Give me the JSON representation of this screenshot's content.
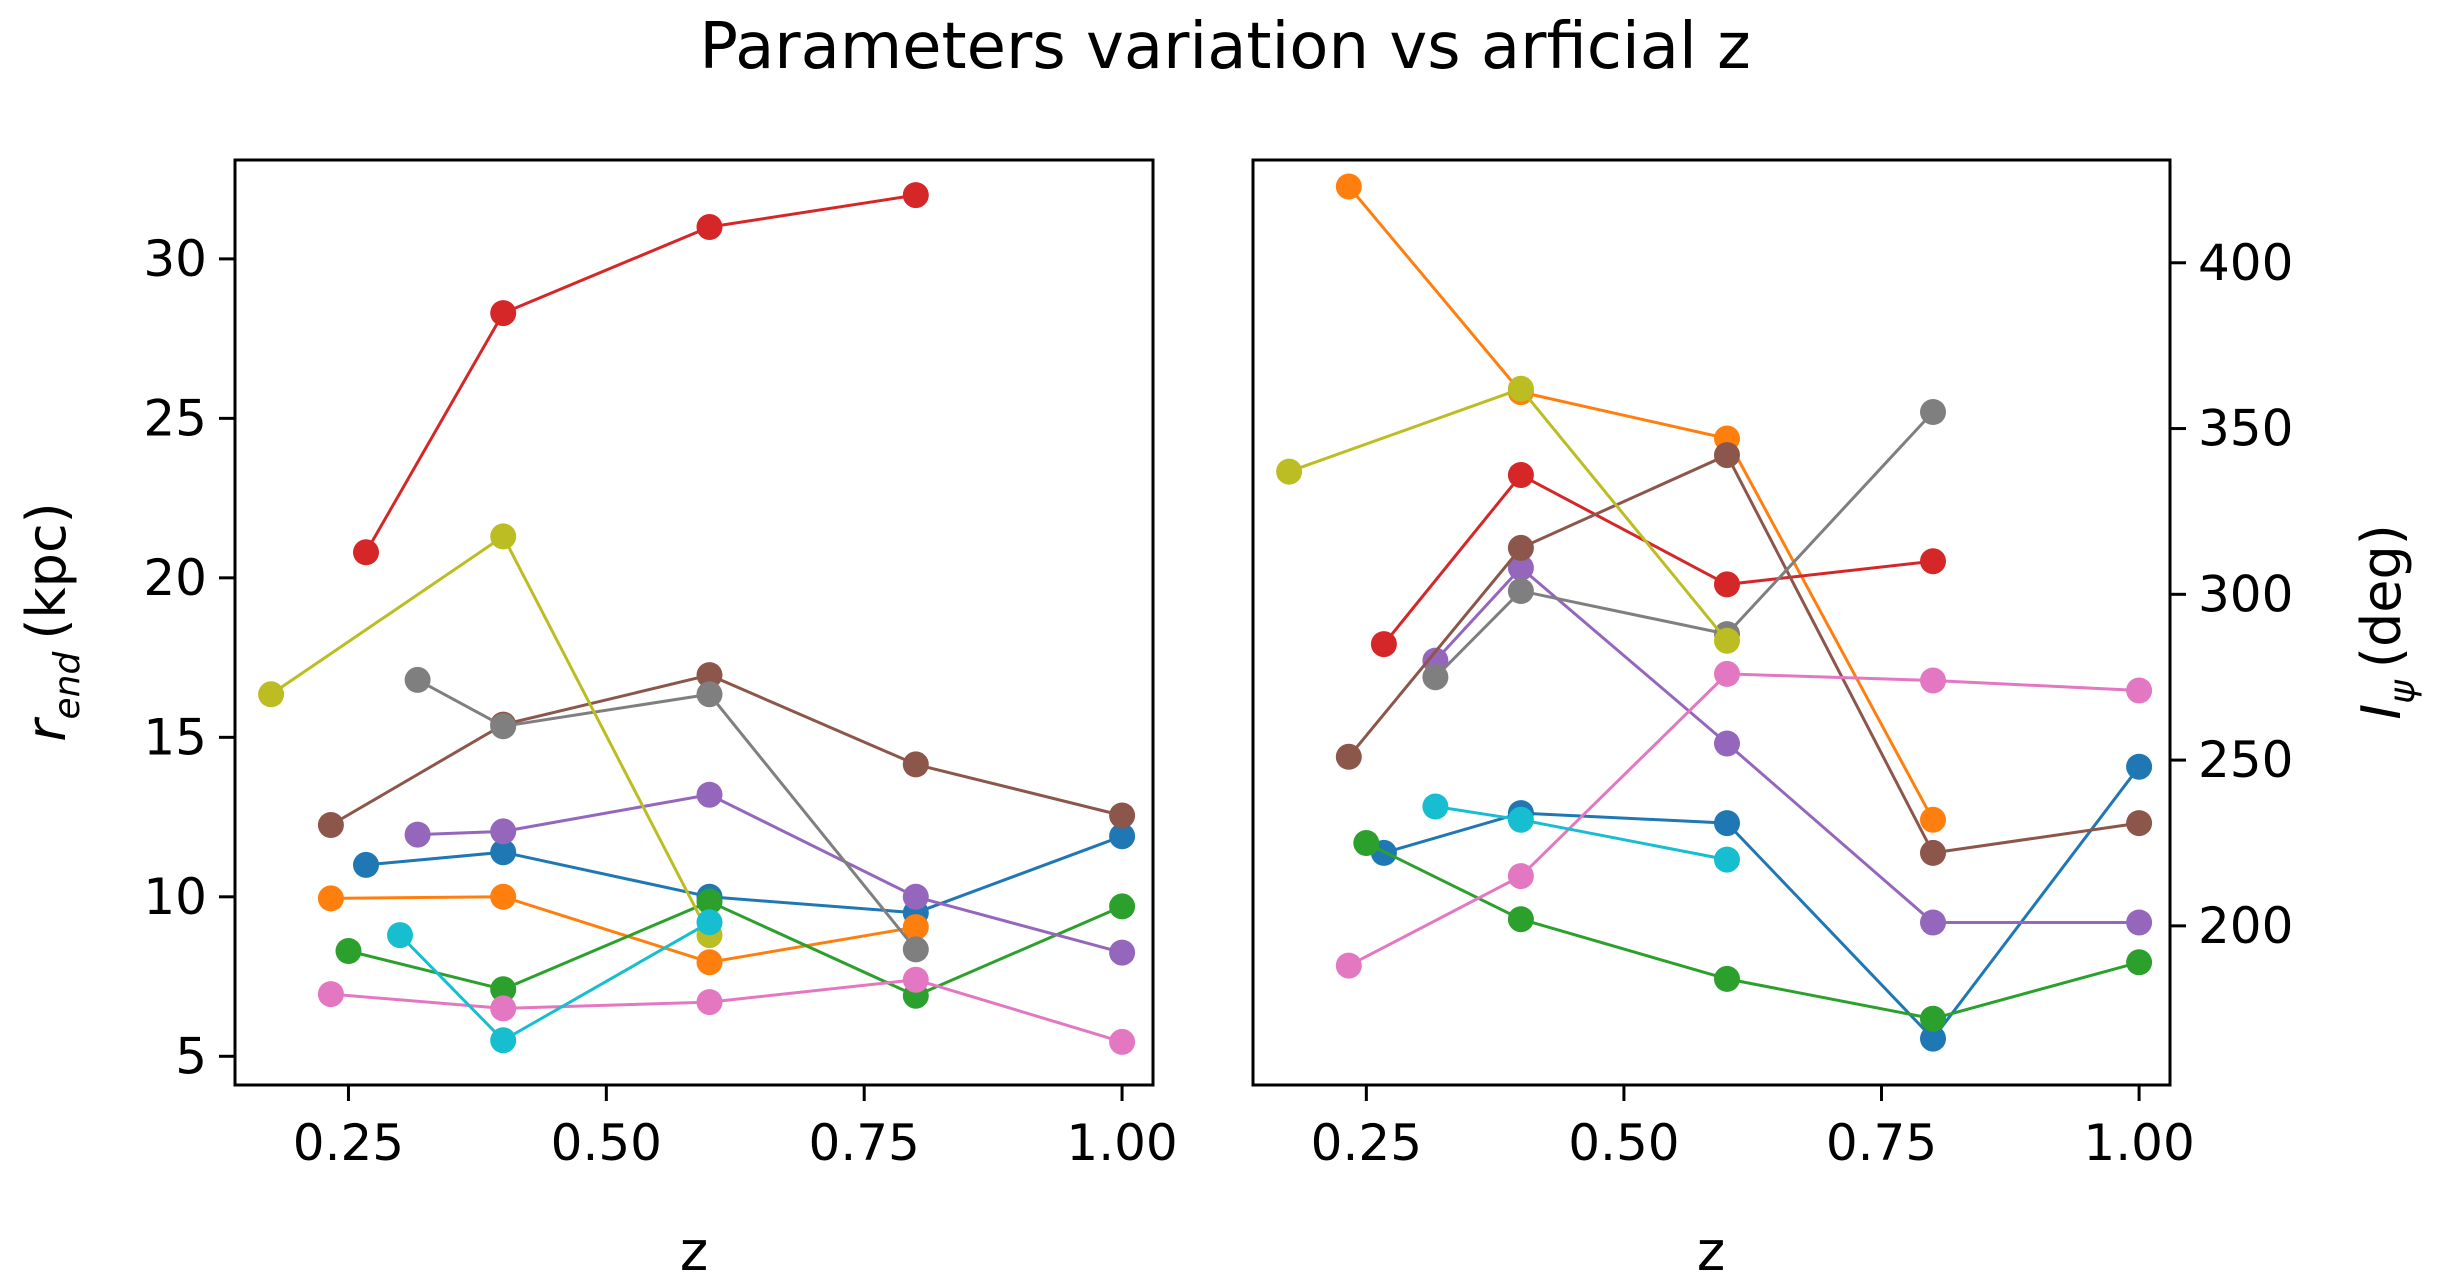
{
  "figure": {
    "title": "Parameters variation vs arficial z"
  },
  "chart_data": [
    {
      "type": "line",
      "panel": "left",
      "xlabel": "z",
      "ylabel": {
        "base": "r",
        "sub": "end",
        "unit": "(kpc)"
      },
      "xlim": [
        0.14,
        1.03
      ],
      "ylim": [
        4.1,
        33.1
      ],
      "xticks": [
        "0.25",
        "0.50",
        "0.75",
        "1.00"
      ],
      "yticks": [
        "5",
        "10",
        "15",
        "20",
        "25",
        "30"
      ],
      "yaxis_side": "left",
      "grid": false,
      "series": [
        {
          "color": "#1f77b4",
          "points": [
            [
              0.267,
              11.0
            ],
            [
              0.4,
              11.4
            ],
            [
              0.6,
              10.0
            ],
            [
              0.8,
              9.5
            ],
            [
              1.0,
              11.9
            ]
          ]
        },
        {
          "color": "#ff7f0e",
          "points": [
            [
              0.233,
              9.95
            ],
            [
              0.4,
              10.0
            ],
            [
              0.6,
              7.95
            ],
            [
              0.8,
              9.05
            ]
          ]
        },
        {
          "color": "#2ca02c",
          "points": [
            [
              0.25,
              8.3
            ],
            [
              0.4,
              7.1
            ],
            [
              0.6,
              9.85
            ],
            [
              0.8,
              6.9
            ],
            [
              1.0,
              9.7
            ]
          ]
        },
        {
          "color": "#d62728",
          "points": [
            [
              0.267,
              20.8
            ],
            [
              0.4,
              28.3
            ],
            [
              0.6,
              31.0
            ],
            [
              0.8,
              32.0
            ]
          ]
        },
        {
          "color": "#9467bd",
          "points": [
            [
              0.317,
              11.95
            ],
            [
              0.4,
              12.05
            ],
            [
              0.6,
              13.2
            ],
            [
              0.8,
              10.0
            ],
            [
              1.0,
              8.25
            ]
          ]
        },
        {
          "color": "#8c564b",
          "points": [
            [
              0.233,
              12.25
            ],
            [
              0.4,
              15.4
            ],
            [
              0.6,
              16.95
            ],
            [
              0.8,
              14.15
            ],
            [
              1.0,
              12.55
            ]
          ]
        },
        {
          "color": "#e377c2",
          "points": [
            [
              0.233,
              6.95
            ],
            [
              0.4,
              6.5
            ],
            [
              0.6,
              6.7
            ],
            [
              0.8,
              7.4
            ],
            [
              1.0,
              5.45
            ]
          ]
        },
        {
          "color": "#7f7f7f",
          "points": [
            [
              0.317,
              16.8
            ],
            [
              0.4,
              15.35
            ],
            [
              0.6,
              16.35
            ],
            [
              0.8,
              8.35
            ]
          ]
        },
        {
          "color": "#bcbd22",
          "points": [
            [
              0.175,
              16.35
            ],
            [
              0.4,
              21.3
            ],
            [
              0.6,
              8.8
            ]
          ]
        },
        {
          "color": "#17becf",
          "points": [
            [
              0.3,
              8.8
            ],
            [
              0.4,
              5.5
            ],
            [
              0.6,
              9.2
            ]
          ]
        }
      ]
    },
    {
      "type": "line",
      "panel": "right",
      "xlabel": "z",
      "ylabel": {
        "base": "I",
        "sub": "ψ",
        "unit": "(deg)"
      },
      "xlim": [
        0.14,
        1.03
      ],
      "ylim": [
        152,
        431
      ],
      "xticks": [
        "0.25",
        "0.50",
        "0.75",
        "1.00"
      ],
      "yticks": [
        "200",
        "250",
        "300",
        "350",
        "400"
      ],
      "yaxis_side": "right",
      "grid": false,
      "series": [
        {
          "color": "#1f77b4",
          "points": [
            [
              0.267,
              222
            ],
            [
              0.4,
              234
            ],
            [
              0.6,
              231
            ],
            [
              0.8,
              166
            ],
            [
              1.0,
              248
            ]
          ]
        },
        {
          "color": "#ff7f0e",
          "points": [
            [
              0.233,
              423
            ],
            [
              0.4,
              361
            ],
            [
              0.6,
              347
            ],
            [
              0.8,
              232
            ]
          ]
        },
        {
          "color": "#2ca02c",
          "points": [
            [
              0.25,
              225
            ],
            [
              0.4,
              202
            ],
            [
              0.6,
              184
            ],
            [
              0.8,
              172
            ],
            [
              1.0,
              189
            ]
          ]
        },
        {
          "color": "#d62728",
          "points": [
            [
              0.267,
              285
            ],
            [
              0.4,
              336
            ],
            [
              0.6,
              303
            ],
            [
              0.8,
              310
            ]
          ]
        },
        {
          "color": "#9467bd",
          "points": [
            [
              0.317,
              280
            ],
            [
              0.4,
              308
            ],
            [
              0.6,
              255
            ],
            [
              0.8,
              201
            ],
            [
              1.0,
              201
            ]
          ]
        },
        {
          "color": "#8c564b",
          "points": [
            [
              0.233,
              251
            ],
            [
              0.4,
              314
            ],
            [
              0.6,
              342
            ],
            [
              0.8,
              222
            ],
            [
              1.0,
              231
            ]
          ]
        },
        {
          "color": "#e377c2",
          "points": [
            [
              0.233,
              188
            ],
            [
              0.4,
              215
            ],
            [
              0.6,
              276
            ],
            [
              0.8,
              274
            ],
            [
              1.0,
              271
            ]
          ]
        },
        {
          "color": "#7f7f7f",
          "points": [
            [
              0.317,
              275
            ],
            [
              0.4,
              301
            ],
            [
              0.6,
              288
            ],
            [
              0.8,
              355
            ]
          ]
        },
        {
          "color": "#bcbd22",
          "points": [
            [
              0.175,
              337
            ],
            [
              0.4,
              362
            ],
            [
              0.6,
              286
            ]
          ]
        },
        {
          "color": "#17becf",
          "points": [
            [
              0.317,
              236
            ],
            [
              0.4,
              232
            ],
            [
              0.6,
              220
            ]
          ]
        }
      ]
    }
  ]
}
